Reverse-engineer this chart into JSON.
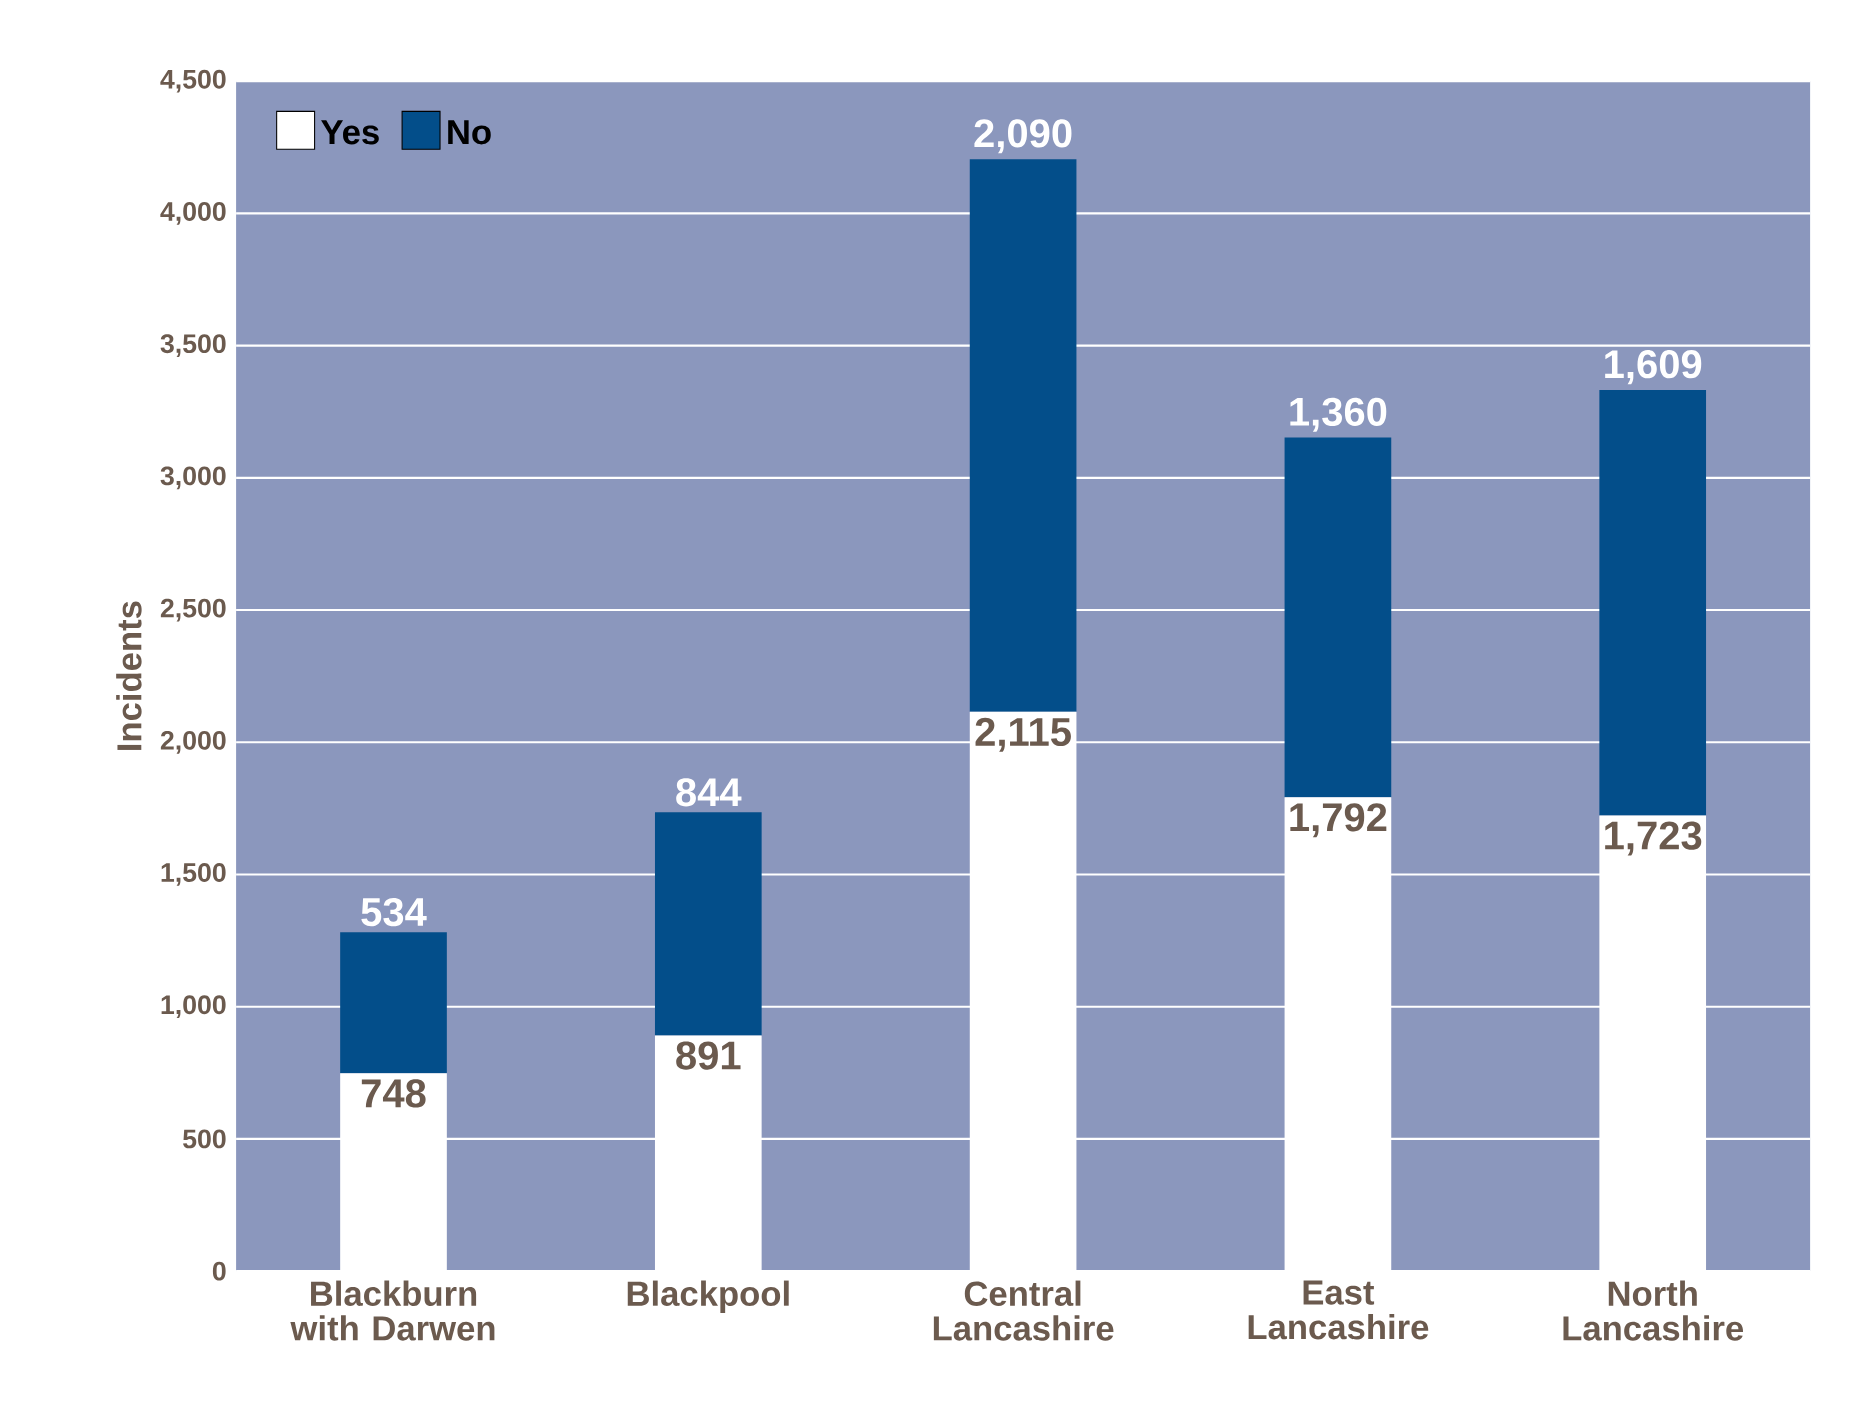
{
  "chart_data": {
    "type": "bar",
    "stacked": true,
    "ylabel": "Incidents",
    "categories": [
      "Blackburn with Darwen",
      "Blackpool",
      "Central Lancashire",
      "East Lancashire",
      "North Lancashire"
    ],
    "series": [
      {
        "name": "Yes",
        "color": "#ffffff",
        "values": [
          748,
          891,
          2115,
          1792,
          1723
        ],
        "value_labels": [
          "748",
          "891",
          "2,115",
          "1,792",
          "1,723"
        ]
      },
      {
        "name": "No",
        "color": "#034e8a",
        "values": [
          534,
          844,
          2090,
          1360,
          1609
        ],
        "value_labels": [
          "534",
          "844",
          "2,090",
          "1,360",
          "1,609"
        ]
      }
    ],
    "ylim": [
      0,
      4500
    ],
    "yticks": [
      0,
      500,
      {
        "value": 1000,
        "label": "1,000"
      },
      {
        "value": 1500,
        "label": "1,500"
      },
      {
        "value": 2000,
        "label": "2,000"
      },
      {
        "value": 2500,
        "label": "2,500"
      },
      {
        "value": 3000,
        "label": "3,000"
      },
      {
        "value": 3500,
        "label": "3,500"
      },
      {
        "value": 4000,
        "label": "4,000"
      },
      {
        "value": 4500,
        "label": "4,500"
      }
    ],
    "grid": "y",
    "legend": "top left"
  }
}
